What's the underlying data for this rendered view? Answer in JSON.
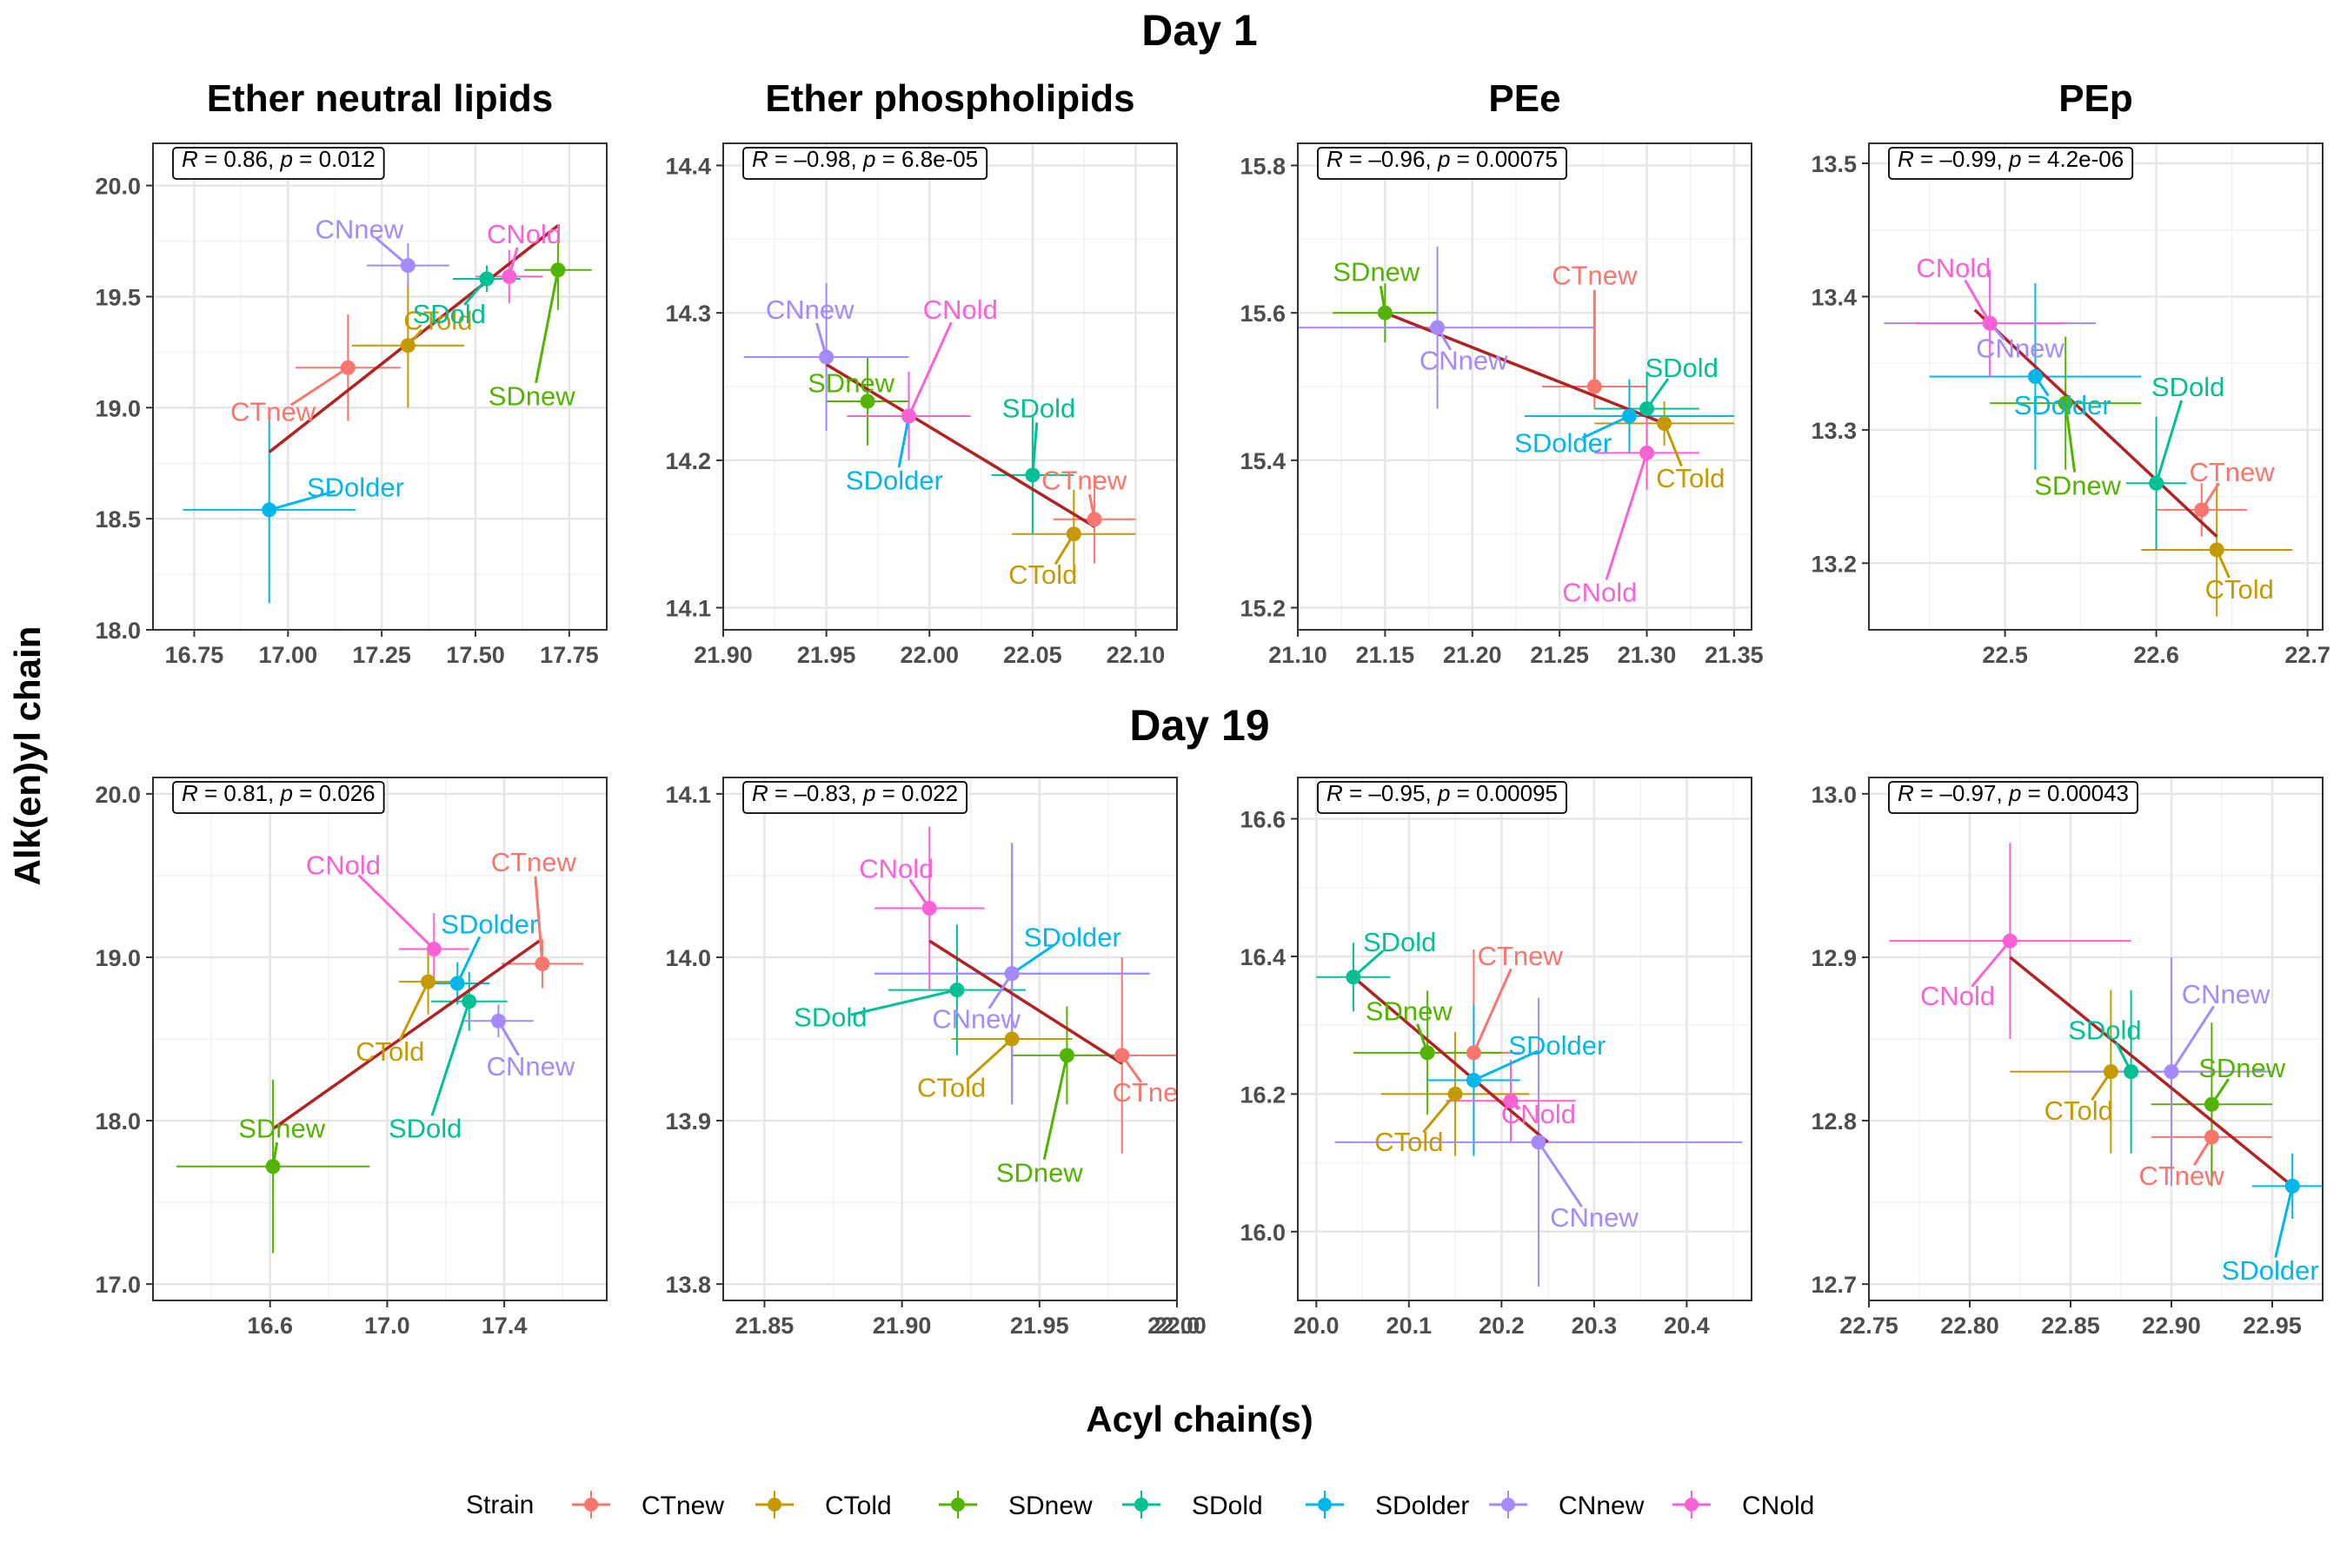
{
  "figure": {
    "rows": [
      "Day 1",
      "Day 19"
    ],
    "xlabel": "Acyl chain(s)",
    "ylabel": "Alk(en)yl chain",
    "legend_title": "Strain"
  },
  "colors": {
    "CTnew": "#F8766D",
    "CTold": "#C49A00",
    "SDnew": "#53B400",
    "SDold": "#00C094",
    "SDolder": "#00B6EB",
    "CNnew": "#A58AFF",
    "CNold": "#FB61D7",
    "fit": "#B22222"
  },
  "legend": [
    "CTnew",
    "CTold",
    "SDnew",
    "SDold",
    "SDolder",
    "CNnew",
    "CNold"
  ],
  "chart_data": [
    {
      "type": "scatter",
      "row": "Day 1",
      "title": "Ether neutral lipids",
      "stat": {
        "r": "0.86",
        "p": "0.012"
      },
      "xlim": [
        16.64,
        17.85
      ],
      "ylim": [
        18.0,
        20.19
      ],
      "xticks": [
        "16.75",
        "17.00",
        "17.25",
        "17.50",
        "17.75"
      ],
      "yticks": [
        "18.0",
        "18.5",
        "19.0",
        "19.5",
        "20.0"
      ],
      "fit": [
        [
          16.95,
          18.8
        ],
        [
          17.72,
          19.82
        ]
      ],
      "points": [
        {
          "strain": "CTnew",
          "x": 17.16,
          "y": 19.18,
          "xe": 0.14,
          "ye": 0.24,
          "lx": 16.96,
          "ly": 18.98
        },
        {
          "strain": "CTold",
          "x": 17.32,
          "y": 19.28,
          "xe": 0.15,
          "ye": 0.28,
          "lx": 17.4,
          "ly": 19.39
        },
        {
          "strain": "SDnew",
          "x": 17.72,
          "y": 19.62,
          "xe": 0.09,
          "ye": 0.18,
          "lx": 17.65,
          "ly": 19.05
        },
        {
          "strain": "SDold",
          "x": 17.53,
          "y": 19.58,
          "xe": 0.09,
          "ye": 0.06,
          "lx": 17.43,
          "ly": 19.42
        },
        {
          "strain": "SDolder",
          "x": 16.95,
          "y": 18.54,
          "xe": 0.23,
          "ye": 0.42,
          "lx": 17.18,
          "ly": 18.64
        },
        {
          "strain": "CNnew",
          "x": 17.32,
          "y": 19.64,
          "xe": 0.11,
          "ye": 0.1,
          "lx": 17.19,
          "ly": 19.8
        },
        {
          "strain": "CNold",
          "x": 17.59,
          "y": 19.59,
          "xe": 0.09,
          "ye": 0.12,
          "lx": 17.63,
          "ly": 19.78
        }
      ]
    },
    {
      "type": "scatter",
      "row": "Day 1",
      "title": "Ether phospholipids",
      "stat": {
        "r": "–0.98",
        "p": "6.8e-05"
      },
      "xlim": [
        21.9,
        22.12
      ],
      "ylim": [
        14.085,
        14.415
      ],
      "xticks": [
        "21.90",
        "21.95",
        "22.00",
        "22.05",
        "22.10"
      ],
      "yticks": [
        "14.1",
        "14.2",
        "14.3",
        "14.4"
      ],
      "fit": [
        [
          21.95,
          14.265
        ],
        [
          22.08,
          14.155
        ]
      ],
      "points": [
        {
          "strain": "CTnew",
          "x": 22.08,
          "y": 14.16,
          "xe": 0.02,
          "ye": 0.03,
          "lx": 22.075,
          "ly": 14.186
        },
        {
          "strain": "CTold",
          "x": 22.07,
          "y": 14.15,
          "xe": 0.03,
          "ye": 0.03,
          "lx": 22.055,
          "ly": 14.122
        },
        {
          "strain": "SDnew",
          "x": 21.97,
          "y": 14.24,
          "xe": 0.02,
          "ye": 0.03,
          "lx": 21.962,
          "ly": 14.252
        },
        {
          "strain": "SDold",
          "x": 22.05,
          "y": 14.19,
          "xe": 0.02,
          "ye": 0.04,
          "lx": 22.053,
          "ly": 14.235
        },
        {
          "strain": "SDolder",
          "x": 21.99,
          "y": 14.23,
          "xe": 0.02,
          "ye": 0.03,
          "lx": 21.983,
          "ly": 14.186
        },
        {
          "strain": "CNnew",
          "x": 21.95,
          "y": 14.27,
          "xe": 0.04,
          "ye": 0.05,
          "lx": 21.942,
          "ly": 14.302
        },
        {
          "strain": "CNold",
          "x": 21.99,
          "y": 14.23,
          "xe": 0.03,
          "ye": 0.03,
          "lx": 22.015,
          "ly": 14.302
        }
      ]
    },
    {
      "type": "scatter",
      "row": "Day 1",
      "title": "PEe",
      "stat": {
        "r": "–0.96",
        "p": "0.00075"
      },
      "xlim": [
        21.1,
        21.36
      ],
      "ylim": [
        15.17,
        15.83
      ],
      "xticks": [
        "21.10",
        "21.15",
        "21.20",
        "21.25",
        "21.30",
        "21.35"
      ],
      "yticks": [
        "15.2",
        "15.4",
        "15.6",
        "15.8"
      ],
      "fit": [
        [
          21.15,
          15.6
        ],
        [
          21.31,
          15.45
        ]
      ],
      "points": [
        {
          "strain": "CTnew",
          "x": 21.27,
          "y": 15.5,
          "xe": 0.03,
          "ye": 0.03,
          "lx": 21.27,
          "ly": 15.65
        },
        {
          "strain": "CTold",
          "x": 21.31,
          "y": 15.45,
          "xe": 0.04,
          "ye": 0.03,
          "lx": 21.325,
          "ly": 15.375
        },
        {
          "strain": "SDnew",
          "x": 21.15,
          "y": 15.6,
          "xe": 0.03,
          "ye": 0.04,
          "lx": 21.145,
          "ly": 15.655
        },
        {
          "strain": "SDold",
          "x": 21.3,
          "y": 15.47,
          "xe": 0.03,
          "ye": 0.05,
          "lx": 21.32,
          "ly": 15.525
        },
        {
          "strain": "SDolder",
          "x": 21.29,
          "y": 15.46,
          "xe": 0.06,
          "ye": 0.05,
          "lx": 21.252,
          "ly": 15.423
        },
        {
          "strain": "CNnew",
          "x": 21.18,
          "y": 15.58,
          "xe": 0.09,
          "ye": 0.11,
          "lx": 21.195,
          "ly": 15.535
        },
        {
          "strain": "CNold",
          "x": 21.3,
          "y": 15.41,
          "xe": 0.03,
          "ye": 0.05,
          "lx": 21.273,
          "ly": 15.22
        }
      ]
    },
    {
      "type": "scatter",
      "row": "Day 1",
      "title": "PEp",
      "stat": {
        "r": "–0.99",
        "p": "4.2e-06"
      },
      "xlim": [
        22.41,
        22.71
      ],
      "ylim": [
        13.15,
        13.515
      ],
      "xticks": [
        "22.5",
        "22.6",
        "22.7"
      ],
      "yticks": [
        "13.2",
        "13.3",
        "13.4",
        "13.5"
      ],
      "fit": [
        [
          22.48,
          13.39
        ],
        [
          22.64,
          13.22
        ]
      ],
      "points": [
        {
          "strain": "CTnew",
          "x": 22.63,
          "y": 13.24,
          "xe": 0.03,
          "ye": 0.02,
          "lx": 22.65,
          "ly": 13.268
        },
        {
          "strain": "CTold",
          "x": 22.64,
          "y": 13.21,
          "xe": 0.05,
          "ye": 0.05,
          "lx": 22.655,
          "ly": 13.18
        },
        {
          "strain": "SDnew",
          "x": 22.54,
          "y": 13.32,
          "xe": 0.05,
          "ye": 0.05,
          "lx": 22.548,
          "ly": 13.258
        },
        {
          "strain": "SDold",
          "x": 22.6,
          "y": 13.26,
          "xe": 0.02,
          "ye": 0.05,
          "lx": 22.621,
          "ly": 13.332
        },
        {
          "strain": "SDolder",
          "x": 22.52,
          "y": 13.34,
          "xe": 0.07,
          "ye": 0.07,
          "lx": 22.538,
          "ly": 13.318
        },
        {
          "strain": "CNnew",
          "x": 22.49,
          "y": 13.38,
          "xe": 0.07,
          "ye": 0.04,
          "lx": 22.51,
          "ly": 13.361
        },
        {
          "strain": "CNold",
          "x": 22.49,
          "y": 13.38,
          "xe": 0.05,
          "ye": 0.04,
          "lx": 22.466,
          "ly": 13.421
        }
      ]
    },
    {
      "type": "scatter",
      "row": "Day 19",
      "title": "",
      "stat": {
        "r": "0.81",
        "p": "0.026"
      },
      "xlim": [
        16.2,
        17.75
      ],
      "ylim": [
        16.9,
        20.1
      ],
      "xticks": [
        "16.6",
        "17.0",
        "17.4"
      ],
      "yticks": [
        "17.0",
        "18.0",
        "19.0",
        "20.0"
      ],
      "fit": [
        [
          16.61,
          17.95
        ],
        [
          17.52,
          19.1
        ]
      ],
      "points": [
        {
          "strain": "CTnew",
          "x": 17.53,
          "y": 18.96,
          "xe": 0.14,
          "ye": 0.15,
          "lx": 17.5,
          "ly": 19.58
        },
        {
          "strain": "CTold",
          "x": 17.14,
          "y": 18.85,
          "xe": 0.1,
          "ye": 0.2,
          "lx": 17.01,
          "ly": 18.42
        },
        {
          "strain": "SDnew",
          "x": 16.61,
          "y": 17.72,
          "xe": 0.33,
          "ye": 0.53,
          "lx": 16.64,
          "ly": 17.95
        },
        {
          "strain": "SDold",
          "x": 17.28,
          "y": 18.73,
          "xe": 0.13,
          "ye": 0.18,
          "lx": 17.13,
          "ly": 17.95
        },
        {
          "strain": "SDolder",
          "x": 17.24,
          "y": 18.84,
          "xe": 0.11,
          "ye": 0.13,
          "lx": 17.35,
          "ly": 19.2
        },
        {
          "strain": "CNnew",
          "x": 17.38,
          "y": 18.61,
          "xe": 0.12,
          "ye": 0.1,
          "lx": 17.49,
          "ly": 18.33
        },
        {
          "strain": "CNold",
          "x": 17.16,
          "y": 19.05,
          "xe": 0.12,
          "ye": 0.22,
          "lx": 16.85,
          "ly": 19.56
        }
      ]
    },
    {
      "type": "scatter",
      "row": "Day 19",
      "title": "",
      "stat": {
        "r": "–0.83",
        "p": "0.022"
      },
      "xlim": [
        21.835,
        22.0
      ],
      "ylim": [
        13.79,
        14.11
      ],
      "xticks": [
        "21.85",
        "21.90",
        "21.95",
        "22.00",
        "22.0"
      ],
      "yticks": [
        "13.8",
        "13.9",
        "14.0",
        "14.1"
      ],
      "fit": [
        [
          21.91,
          14.01
        ],
        [
          21.98,
          13.935
        ]
      ],
      "points": [
        {
          "strain": "CTnew",
          "x": 21.98,
          "y": 13.94,
          "xe": 0.022,
          "ye": 0.06,
          "lx": 21.992,
          "ly": 13.917
        },
        {
          "strain": "CTold",
          "x": 21.94,
          "y": 13.95,
          "xe": 0.022,
          "ye": 0.02,
          "lx": 21.918,
          "ly": 13.92
        },
        {
          "strain": "SDnew",
          "x": 21.96,
          "y": 13.94,
          "xe": 0.02,
          "ye": 0.03,
          "lx": 21.95,
          "ly": 13.868
        },
        {
          "strain": "SDold",
          "x": 21.92,
          "y": 13.98,
          "xe": 0.025,
          "ye": 0.04,
          "lx": 21.874,
          "ly": 13.963
        },
        {
          "strain": "SDolder",
          "x": 21.94,
          "y": 13.99,
          "xe": 0.05,
          "ye": 0.08,
          "lx": 21.962,
          "ly": 14.012
        },
        {
          "strain": "CNnew",
          "x": 21.94,
          "y": 13.99,
          "xe": 0.05,
          "ye": 0.08,
          "lx": 21.927,
          "ly": 13.962
        },
        {
          "strain": "CNold",
          "x": 21.91,
          "y": 14.03,
          "xe": 0.02,
          "ye": 0.05,
          "lx": 21.898,
          "ly": 14.054
        }
      ]
    },
    {
      "type": "scatter",
      "row": "Day 19",
      "title": "",
      "stat": {
        "r": "–0.95",
        "p": "0.00095"
      },
      "xlim": [
        19.98,
        20.47
      ],
      "ylim": [
        15.9,
        16.66
      ],
      "xticks": [
        "20.0",
        "20.1",
        "20.2",
        "20.3",
        "20.4"
      ],
      "yticks": [
        "16.0",
        "16.2",
        "16.4",
        "16.6"
      ],
      "fit": [
        [
          20.04,
          16.37
        ],
        [
          20.25,
          16.13
        ]
      ],
      "points": [
        {
          "strain": "CTnew",
          "x": 20.17,
          "y": 16.26,
          "xe": 0.05,
          "ye": 0.15,
          "lx": 20.22,
          "ly": 16.4
        },
        {
          "strain": "CTold",
          "x": 20.15,
          "y": 16.2,
          "xe": 0.08,
          "ye": 0.09,
          "lx": 20.1,
          "ly": 16.13
        },
        {
          "strain": "SDnew",
          "x": 20.12,
          "y": 16.26,
          "xe": 0.08,
          "ye": 0.09,
          "lx": 20.1,
          "ly": 16.32
        },
        {
          "strain": "SDold",
          "x": 20.04,
          "y": 16.37,
          "xe": 0.04,
          "ye": 0.05,
          "lx": 20.09,
          "ly": 16.42
        },
        {
          "strain": "SDolder",
          "x": 20.17,
          "y": 16.22,
          "xe": 0.05,
          "ye": 0.11,
          "lx": 20.26,
          "ly": 16.27
        },
        {
          "strain": "CNnew",
          "x": 20.24,
          "y": 16.13,
          "xe": 0.22,
          "ye": 0.21,
          "lx": 20.3,
          "ly": 16.02
        },
        {
          "strain": "CNold",
          "x": 20.21,
          "y": 16.19,
          "xe": 0.07,
          "ye": 0.06,
          "lx": 20.24,
          "ly": 16.17
        }
      ]
    },
    {
      "type": "scatter",
      "row": "Day 19",
      "title": "",
      "stat": {
        "r": "–0.97",
        "p": "0.00043"
      },
      "xlim": [
        22.75,
        22.975
      ],
      "ylim": [
        12.69,
        13.01
      ],
      "xticks": [
        "22.75",
        "22.80",
        "22.85",
        "22.90",
        "22.95"
      ],
      "yticks": [
        "12.7",
        "12.8",
        "12.9",
        "13.0"
      ],
      "fit": [
        [
          22.82,
          12.9
        ],
        [
          22.96,
          12.76
        ]
      ],
      "points": [
        {
          "strain": "CTnew",
          "x": 22.92,
          "y": 12.79,
          "xe": 0.03,
          "ye": 0.03,
          "lx": 22.905,
          "ly": 12.766
        },
        {
          "strain": "CTold",
          "x": 22.87,
          "y": 12.83,
          "xe": 0.05,
          "ye": 0.05,
          "lx": 22.854,
          "ly": 12.806
        },
        {
          "strain": "SDnew",
          "x": 22.92,
          "y": 12.81,
          "xe": 0.03,
          "ye": 0.05,
          "lx": 22.935,
          "ly": 12.832
        },
        {
          "strain": "SDold",
          "x": 22.88,
          "y": 12.83,
          "xe": 0.03,
          "ye": 0.05,
          "lx": 22.867,
          "ly": 12.855
        },
        {
          "strain": "SDolder",
          "x": 22.96,
          "y": 12.76,
          "xe": 0.02,
          "ye": 0.02,
          "lx": 22.949,
          "ly": 12.708
        },
        {
          "strain": "CNnew",
          "x": 22.9,
          "y": 12.83,
          "xe": 0.05,
          "ye": 0.07,
          "lx": 22.927,
          "ly": 12.877
        },
        {
          "strain": "CNold",
          "x": 22.82,
          "y": 12.91,
          "xe": 0.06,
          "ye": 0.06,
          "lx": 22.794,
          "ly": 12.876
        }
      ]
    }
  ]
}
